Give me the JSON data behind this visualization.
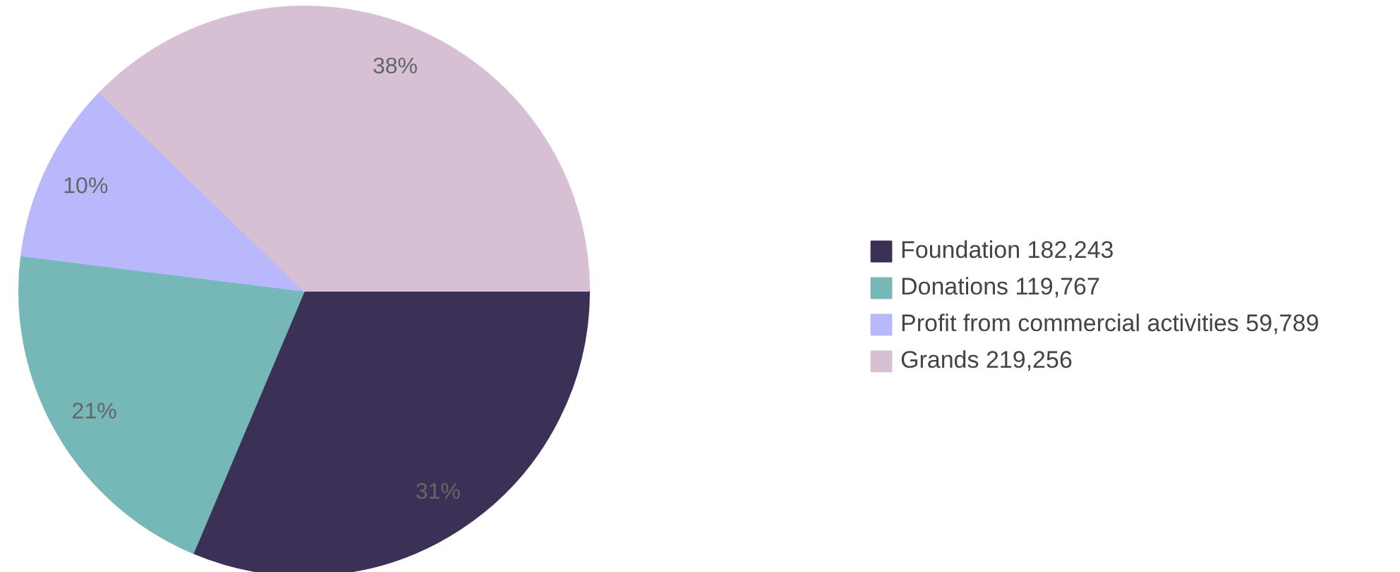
{
  "chart_data": {
    "type": "pie",
    "categories": [
      "Foundation 182,243",
      "Donations 119,767",
      "Profit from commercial activities 59,789",
      "Grands 219,256"
    ],
    "values": [
      31.36,
      20.61,
      10.29,
      37.74
    ],
    "colors": [
      "#3b3157",
      "#76b7b8",
      "#b9b8fc",
      "#d7c0d3"
    ],
    "value_labels": [
      "31%",
      "21%",
      "10%",
      "38%"
    ],
    "legend": "right"
  }
}
